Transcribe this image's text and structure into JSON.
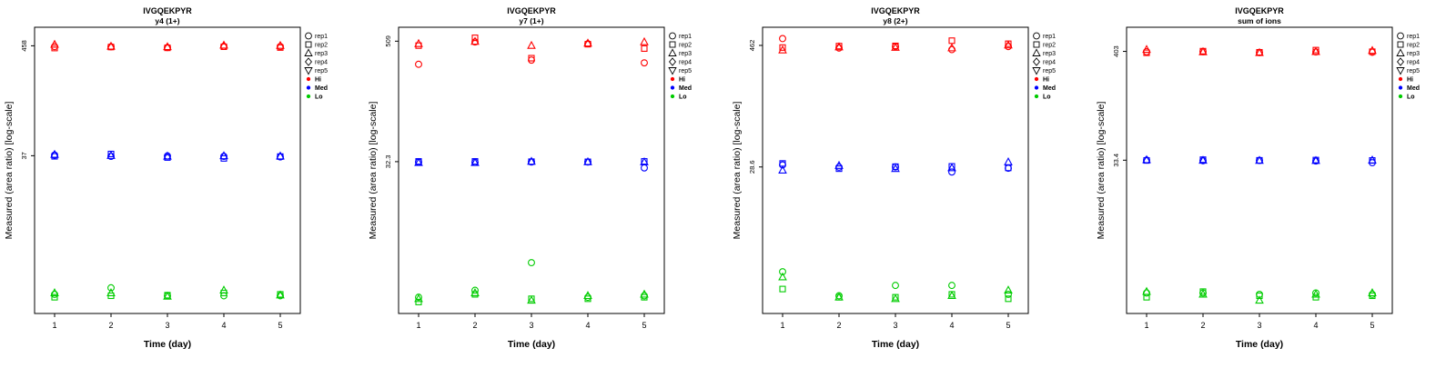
{
  "page": {
    "background": "#ffffff"
  },
  "legend": {
    "reps": [
      {
        "label": "rep1",
        "shape": "circle"
      },
      {
        "label": "rep2",
        "shape": "square"
      },
      {
        "label": "rep3",
        "shape": "triangle"
      },
      {
        "label": "rep4",
        "shape": "diamond"
      },
      {
        "label": "rep5",
        "shape": "triangle-down"
      }
    ],
    "levels": [
      {
        "label": "Hi",
        "color": "#FF0000"
      },
      {
        "label": "Med",
        "color": "#0000FF"
      },
      {
        "label": "Lo",
        "color": "#00CC00"
      }
    ]
  },
  "chart_data": [
    {
      "type": "scatter",
      "title": "IVGQEKPYR",
      "subtitle": "y4 (1+)",
      "xlabel": "Time (day)",
      "ylabel": "Measured (area ratio) [log-scale]",
      "xticks": [
        1,
        2,
        3,
        4,
        5
      ],
      "yticks": [
        {
          "label": "458",
          "value": 458
        },
        {
          "label": "37",
          "value": 37
        }
      ],
      "ylim": [
        1,
        700
      ],
      "yscale": "log",
      "reps": [
        "rep1",
        "rep2",
        "rep3"
      ],
      "series": [
        {
          "name": "Hi",
          "color": "#FF0000",
          "values_by_day": [
            [
              450,
              435,
              472
            ],
            [
              448,
              445,
              452
            ],
            [
              440,
              437,
              447
            ],
            [
              452,
              448,
              463
            ],
            [
              450,
              440,
              460
            ]
          ]
        },
        {
          "name": "Med",
          "color": "#0000FF",
          "values_by_day": [
            [
              37.5,
              36.5,
              38
            ],
            [
              36.5,
              38.5,
              37
            ],
            [
              36.8,
              35.5,
              36.5
            ],
            [
              36.5,
              34.8,
              36.8
            ],
            [
              36,
              36.3,
              36.6
            ]
          ]
        },
        {
          "name": "Lo",
          "color": "#00CC00",
          "values_by_day": [
            [
              1.55,
              1.45,
              1.6
            ],
            [
              1.8,
              1.5,
              1.6
            ],
            [
              1.5,
              1.52,
              1.48
            ],
            [
              1.5,
              1.6,
              1.7
            ],
            [
              1.5,
              1.55,
              1.52
            ]
          ]
        }
      ]
    },
    {
      "type": "scatter",
      "title": "IVGQEKPYR",
      "subtitle": "y7 (1+)",
      "xlabel": "Time (day)",
      "ylabel": "Measured (area ratio) [log-scale]",
      "xticks": [
        1,
        2,
        3,
        4,
        5
      ],
      "yticks": [
        {
          "label": "509",
          "value": 509
        },
        {
          "label": "32.3",
          "value": 32.3
        }
      ],
      "ylim": [
        1,
        700
      ],
      "yscale": "log",
      "reps": [
        "rep1",
        "rep2",
        "rep3"
      ],
      "series": [
        {
          "name": "Hi",
          "color": "#FF0000",
          "values_by_day": [
            [
              300,
              460,
              480
            ],
            [
              500,
              550,
              505
            ],
            [
              330,
              345,
              460
            ],
            [
              480,
              475,
              485
            ],
            [
              310,
              430,
              500
            ]
          ]
        },
        {
          "name": "Med",
          "color": "#0000FF",
          "values_by_day": [
            [
              32,
              32.5,
              31.5
            ],
            [
              31.8,
              32.5,
              31.5
            ],
            [
              32,
              32.3,
              32.4
            ],
            [
              32,
              32.2,
              32.1
            ],
            [
              28,
              32.5,
              32
            ]
          ]
        },
        {
          "name": "Lo",
          "color": "#00CC00",
          "values_by_day": [
            [
              1.45,
              1.3,
              1.4
            ],
            [
              1.7,
              1.55,
              1.6
            ],
            [
              3.2,
              1.4,
              1.35
            ],
            [
              1.45,
              1.4,
              1.5
            ],
            [
              1.5,
              1.45,
              1.55
            ]
          ]
        }
      ]
    },
    {
      "type": "scatter",
      "title": "IVGQEKPYR",
      "subtitle": "y8 (2+)",
      "xlabel": "Time (day)",
      "ylabel": "Measured (area ratio) [log-scale]",
      "xticks": [
        1,
        2,
        3,
        4,
        5
      ],
      "yticks": [
        {
          "label": "462",
          "value": 462
        },
        {
          "label": "28.6",
          "value": 28.6
        }
      ],
      "ylim": [
        1,
        700
      ],
      "yscale": "log",
      "reps": [
        "rep1",
        "rep2",
        "rep3"
      ],
      "series": [
        {
          "name": "Hi",
          "color": "#FF0000",
          "values_by_day": [
            [
              540,
              440,
              415
            ],
            [
              435,
              455,
              445
            ],
            [
              450,
              457,
              440
            ],
            [
              420,
              515,
              435
            ],
            [
              450,
              480,
              465
            ]
          ]
        },
        {
          "name": "Med",
          "color": "#0000FF",
          "values_by_day": [
            [
              30,
              31,
              26.5
            ],
            [
              28.5,
              27.5,
              29.5
            ],
            [
              28.6,
              28.8,
              27.5
            ],
            [
              25.5,
              29,
              28
            ],
            [
              27.8,
              28,
              32
            ]
          ]
        },
        {
          "name": "Lo",
          "color": "#00CC00",
          "values_by_day": [
            [
              2.6,
              1.75,
              2.3
            ],
            [
              1.5,
              1.45,
              1.45
            ],
            [
              1.9,
              1.45,
              1.4
            ],
            [
              1.9,
              1.55,
              1.5
            ],
            [
              1.55,
              1.4,
              1.7
            ]
          ]
        }
      ]
    },
    {
      "type": "scatter",
      "title": "IVGQEKPYR",
      "subtitle": "sum of ions",
      "xlabel": "Time (day)",
      "ylabel": "Measured (area ratio) [log-scale]",
      "xticks": [
        1,
        2,
        3,
        4,
        5
      ],
      "yticks": [
        {
          "label": "403",
          "value": 403
        },
        {
          "label": "33.4",
          "value": 33.4
        }
      ],
      "ylim": [
        1,
        700
      ],
      "yscale": "log",
      "reps": [
        "rep1",
        "rep2",
        "rep3"
      ],
      "series": [
        {
          "name": "Hi",
          "color": "#FF0000",
          "values_by_day": [
            [
              400,
              390,
              420
            ],
            [
              400,
              405,
              398
            ],
            [
              392,
              395,
              390
            ],
            [
              398,
              415,
              400
            ],
            [
              395,
              400,
              410
            ]
          ]
        },
        {
          "name": "Med",
          "color": "#0000FF",
          "values_by_day": [
            [
              33.5,
              33.2,
              33.6
            ],
            [
              33,
              33.8,
              33.2
            ],
            [
              33.2,
              33.3,
              33.1
            ],
            [
              32.8,
              33.5,
              33
            ],
            [
              31.5,
              33.2,
              33.4
            ]
          ]
        },
        {
          "name": "Lo",
          "color": "#00CC00",
          "values_by_day": [
            [
              1.6,
              1.45,
              1.65
            ],
            [
              1.6,
              1.65,
              1.55
            ],
            [
              1.55,
              1.5,
              1.35
            ],
            [
              1.6,
              1.45,
              1.55
            ],
            [
              1.55,
              1.5,
              1.6
            ]
          ]
        }
      ]
    }
  ]
}
